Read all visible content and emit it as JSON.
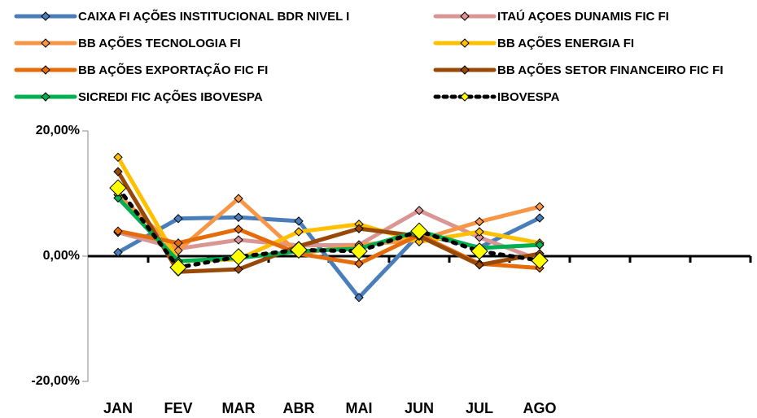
{
  "chart_data": {
    "type": "line",
    "categories": [
      "JAN",
      "FEV",
      "MAR",
      "ABR",
      "MAI",
      "JUN",
      "JUL",
      "AGO",
      null,
      null,
      null
    ],
    "ylim": [
      -20,
      20
    ],
    "yticks": [
      {
        "value": 20,
        "label": "20,00%"
      },
      {
        "value": 0,
        "label": "0,00%"
      },
      {
        "value": -20,
        "label": "-20,00%"
      }
    ],
    "series": [
      {
        "name": "CAIXA FI AÇÕES INSTITUCIONAL BDR NIVEL I",
        "color": "#4a7ebb",
        "values": [
          0.6,
          6.0,
          6.2,
          5.6,
          -6.6,
          3.5,
          1.4,
          6.1,
          null,
          null,
          null
        ]
      },
      {
        "name": "ITAÚ AÇOES DUNAMIS FIC FI",
        "color": "#d99694",
        "values": [
          3.8,
          1.2,
          2.6,
          1.7,
          1.8,
          7.3,
          3.0,
          -0.6,
          null,
          null,
          null
        ]
      },
      {
        "name": "BB AÇÕES TECNOLOGIA FI",
        "color": "#f79646",
        "values": [
          9.8,
          0.9,
          9.2,
          0.4,
          1.8,
          2.6,
          5.5,
          7.9,
          null,
          null,
          null
        ]
      },
      {
        "name": "BB AÇÕES ENERGIA FI",
        "color": "#ffc000",
        "values": [
          15.8,
          -0.8,
          -0.5,
          3.9,
          5.1,
          2.3,
          3.9,
          2.1,
          null,
          null,
          null
        ]
      },
      {
        "name": "BB AÇÕES EXPORTAÇÃO FIC FI",
        "color": "#e46c0a",
        "values": [
          4.0,
          2.1,
          4.3,
          0.4,
          -1.2,
          3.4,
          -1.2,
          -1.9,
          null,
          null,
          null
        ]
      },
      {
        "name": "BB AÇÕES SETOR FINANCEIRO FIC FI",
        "color": "#984807",
        "values": [
          13.5,
          -2.5,
          -2.1,
          1.6,
          4.4,
          3.2,
          -1.4,
          0.4,
          null,
          null,
          null
        ]
      },
      {
        "name": "SICREDI FIC AÇÕES IBOVESPA",
        "color": "#00b050",
        "values": [
          9.3,
          -0.8,
          -0.3,
          0.8,
          1.2,
          4.0,
          1.3,
          1.8,
          null,
          null,
          null
        ]
      },
      {
        "name": "IBOVESPA",
        "color": "#000000",
        "marker_color": "#ffff00",
        "dashed": true,
        "values": [
          10.9,
          -1.8,
          -0.1,
          1.0,
          0.8,
          4.0,
          0.8,
          -0.7,
          null,
          null,
          null
        ]
      }
    ]
  }
}
